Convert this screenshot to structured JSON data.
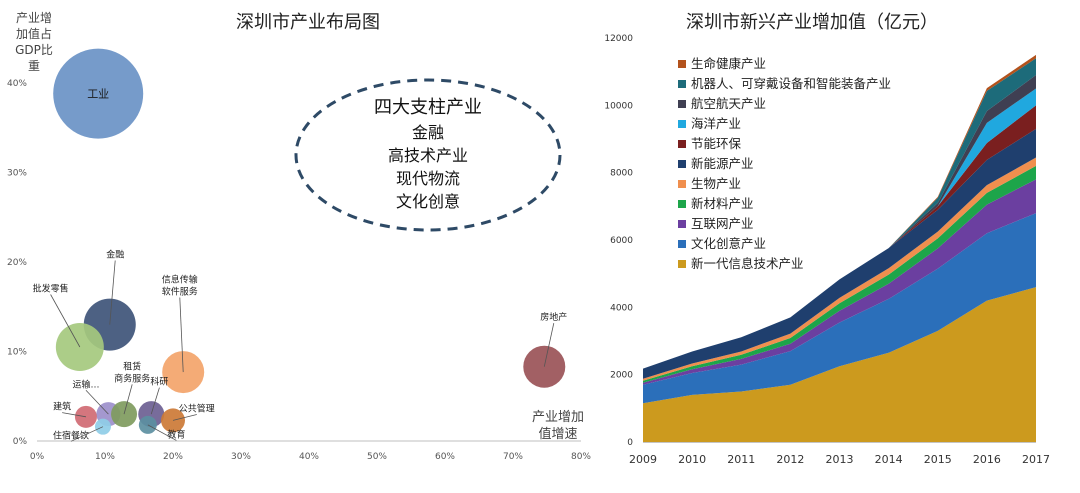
{
  "chart_data": [
    {
      "type": "scatter",
      "title": "深圳市产业布局图",
      "ylabel": "产业增加值占GDP比重",
      "xlabel": "产业增加值增速",
      "ylabel_lines": [
        "产业增",
        "加值占",
        "GDP比",
        "重"
      ],
      "xlabel_lines": [
        "产业增加",
        "值增速"
      ],
      "xlim": [
        0,
        0.8
      ],
      "ylim": [
        0,
        0.42
      ],
      "x_ticks": [
        0,
        0.1,
        0.2,
        0.3,
        0.4,
        0.5,
        0.6,
        0.7,
        0.8
      ],
      "x_tick_labels": [
        "0%",
        "10%",
        "20%",
        "30%",
        "40%",
        "50%",
        "60%",
        "70%",
        "80%"
      ],
      "y_ticks": [
        0,
        0.1,
        0.2,
        0.3,
        0.4
      ],
      "y_tick_labels": [
        "0%",
        "10%",
        "20%",
        "30%",
        "40%"
      ],
      "points": [
        {
          "label": "工业",
          "x": 0.09,
          "y": 0.388,
          "r": 45,
          "color": "#6a93c6",
          "label_pos": "center"
        },
        {
          "label": "金融",
          "x": 0.107,
          "y": 0.13,
          "r": 26,
          "color": "#3e5478",
          "label_pos": "callout",
          "lx": 0.115,
          "ly": 0.205,
          "label_lines": [
            "金融"
          ]
        },
        {
          "label": "批发零售",
          "x": 0.063,
          "y": 0.105,
          "r": 24,
          "color": "#a5c97e",
          "label_pos": "callout",
          "lx": 0.02,
          "ly": 0.167,
          "label_lines": [
            "批发零售"
          ]
        },
        {
          "label": "信息传输软件服务",
          "x": 0.215,
          "y": 0.077,
          "r": 21,
          "color": "#f3a46a",
          "label_pos": "callout",
          "lx": 0.21,
          "ly": 0.177,
          "label_lines": [
            "信息传输",
            "软件服务"
          ]
        },
        {
          "label": "房地产",
          "x": 0.746,
          "y": 0.083,
          "r": 21,
          "color": "#9a5257",
          "label_pos": "callout",
          "lx": 0.76,
          "ly": 0.135,
          "label_lines": [
            "房地产"
          ]
        },
        {
          "label": "运输…",
          "x": 0.105,
          "y": 0.03,
          "r": 12,
          "color": "#9c8fcb",
          "label_pos": "callout",
          "lx": 0.072,
          "ly": 0.06,
          "label_lines": [
            "运输…"
          ]
        },
        {
          "label": "租赁商务服务",
          "x": 0.128,
          "y": 0.03,
          "r": 13,
          "color": "#7f9b5e",
          "label_pos": "callout",
          "lx": 0.14,
          "ly": 0.08,
          "label_lines": [
            "租赁",
            "商务服务"
          ]
        },
        {
          "label": "科研",
          "x": 0.168,
          "y": 0.03,
          "r": 13,
          "color": "#6d5f92",
          "label_pos": "callout",
          "lx": 0.18,
          "ly": 0.063,
          "label_lines": [
            "科研"
          ]
        },
        {
          "label": "建筑",
          "x": 0.072,
          "y": 0.027,
          "r": 11,
          "color": "#d06a73",
          "label_pos": "callout",
          "lx": 0.037,
          "ly": 0.035,
          "label_lines": [
            "建筑"
          ]
        },
        {
          "label": "公共管理",
          "x": 0.2,
          "y": 0.023,
          "r": 12,
          "color": "#cc7a36",
          "label_pos": "callout",
          "lx": 0.235,
          "ly": 0.033,
          "label_lines": [
            "公共管理"
          ]
        },
        {
          "label": "住宿餐饮",
          "x": 0.097,
          "y": 0.016,
          "r": 8,
          "color": "#8fcde7",
          "label_pos": "callout",
          "lx": 0.05,
          "ly": 0.003,
          "label_lines": [
            "住宿餐饮"
          ]
        },
        {
          "label": "教育",
          "x": 0.163,
          "y": 0.018,
          "r": 9,
          "color": "#5c8fa1",
          "label_pos": "callout",
          "lx": 0.205,
          "ly": 0.004,
          "label_lines": [
            "教育"
          ]
        }
      ],
      "annotation": {
        "lines": [
          "四大支柱产业",
          "金融",
          "高技术产业",
          "现代物流",
          "文化创意"
        ]
      }
    },
    {
      "type": "area",
      "title": "深圳市新兴产业增加值（亿元）",
      "x": [
        2009,
        2010,
        2011,
        2012,
        2013,
        2014,
        2015,
        2016,
        2017
      ],
      "ylim": [
        0,
        12000
      ],
      "y_ticks": [
        0,
        2000,
        4000,
        6000,
        8000,
        10000,
        12000
      ],
      "legend_position": "top-left",
      "series": [
        {
          "name": "新一代信息技术产业",
          "color": "#cc9a1e",
          "values": [
            1150,
            1400,
            1500,
            1700,
            2250,
            2650,
            3300,
            4200,
            4600
          ]
        },
        {
          "name": "文化创意产业",
          "color": "#2b6fba",
          "values": [
            550,
            650,
            800,
            1000,
            1300,
            1600,
            1850,
            2000,
            2200
          ]
        },
        {
          "name": "互联网产业",
          "color": "#6b3fa0",
          "values": [
            60,
            110,
            170,
            220,
            350,
            450,
            600,
            850,
            1000
          ]
        },
        {
          "name": "新材料产业",
          "color": "#1da54a",
          "values": [
            60,
            90,
            120,
            170,
            220,
            270,
            300,
            350,
            400
          ]
        },
        {
          "name": "生物产业",
          "color": "#f08f4e",
          "values": [
            60,
            80,
            100,
            130,
            160,
            190,
            200,
            230,
            250
          ]
        },
        {
          "name": "新能源产业",
          "color": "#1f3f6e",
          "values": [
            300,
            360,
            420,
            480,
            550,
            600,
            650,
            750,
            850
          ]
        },
        {
          "name": "节能环保",
          "color": "#7a1f1f",
          "values": [
            0,
            0,
            0,
            0,
            0,
            0,
            100,
            500,
            700
          ]
        },
        {
          "name": "海洋产业",
          "color": "#20a8df",
          "values": [
            0,
            0,
            0,
            0,
            0,
            0,
            0,
            600,
            500
          ]
        },
        {
          "name": "航空航天产业",
          "color": "#3f3f52",
          "values": [
            0,
            0,
            0,
            0,
            0,
            0,
            100,
            350,
            400
          ]
        },
        {
          "name": "机器人、可穿戴设备和智能装备产业",
          "color": "#1d6b7a",
          "values": [
            0,
            0,
            0,
            0,
            0,
            0,
            150,
            600,
            500
          ]
        },
        {
          "name": "生命健康产业",
          "color": "#b3521c",
          "values": [
            0,
            0,
            0,
            0,
            0,
            0,
            30,
            80,
            100
          ]
        }
      ]
    }
  ]
}
